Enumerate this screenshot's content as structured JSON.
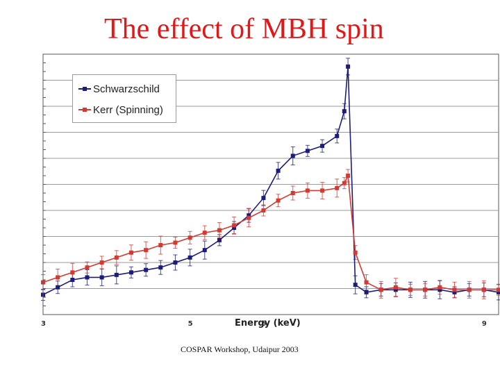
{
  "slide": {
    "title": "The effect of MBH spin",
    "footer": "COSPAR Workshop, Udaipur 2003"
  },
  "chart_data": {
    "type": "line",
    "title": "",
    "xlabel": "Energy (keV)",
    "ylabel": "",
    "xlim": [
      3,
      9.2
    ],
    "ylim": [
      0,
      1.05
    ],
    "xticks": [
      {
        "value": 3,
        "label": "3"
      },
      {
        "value": 5,
        "label": "5"
      },
      {
        "value": 6,
        "label": "6"
      },
      {
        "value": 9,
        "label": "9"
      }
    ],
    "legend_position": "top-left",
    "grid": true,
    "series": [
      {
        "name": "Schwarzschild",
        "color": "#1c1c7c",
        "x": [
          3.0,
          3.2,
          3.4,
          3.6,
          3.8,
          4.0,
          4.2,
          4.4,
          4.6,
          4.8,
          5.0,
          5.2,
          5.4,
          5.6,
          5.8,
          6.0,
          6.2,
          6.4,
          6.6,
          6.8,
          7.0,
          7.1,
          7.15,
          7.25,
          7.4,
          7.6,
          7.8,
          8.0,
          8.2,
          8.4,
          8.6,
          8.8,
          9.0,
          9.2
        ],
        "values": [
          0.08,
          0.11,
          0.14,
          0.15,
          0.15,
          0.16,
          0.17,
          0.18,
          0.19,
          0.21,
          0.23,
          0.26,
          0.3,
          0.35,
          0.4,
          0.47,
          0.58,
          0.64,
          0.66,
          0.68,
          0.72,
          0.82,
          1.0,
          0.12,
          0.09,
          0.1,
          0.1,
          0.1,
          0.1,
          0.1,
          0.09,
          0.1,
          0.1,
          0.09
        ]
      },
      {
        "name": "Kerr (Spinning)",
        "color": "#d23a32",
        "x": [
          3.0,
          3.2,
          3.4,
          3.6,
          3.8,
          4.0,
          4.2,
          4.4,
          4.6,
          4.8,
          5.0,
          5.2,
          5.4,
          5.6,
          5.8,
          6.0,
          6.2,
          6.4,
          6.6,
          6.8,
          7.0,
          7.1,
          7.15,
          7.25,
          7.4,
          7.6,
          7.8,
          8.0,
          8.2,
          8.4,
          8.6,
          8.8,
          9.0,
          9.2
        ],
        "values": [
          0.13,
          0.15,
          0.17,
          0.19,
          0.21,
          0.23,
          0.25,
          0.26,
          0.28,
          0.29,
          0.31,
          0.33,
          0.34,
          0.36,
          0.39,
          0.42,
          0.46,
          0.49,
          0.5,
          0.5,
          0.51,
          0.53,
          0.56,
          0.25,
          0.13,
          0.1,
          0.11,
          0.1,
          0.1,
          0.11,
          0.1,
          0.1,
          0.1,
          0.1
        ]
      }
    ]
  }
}
